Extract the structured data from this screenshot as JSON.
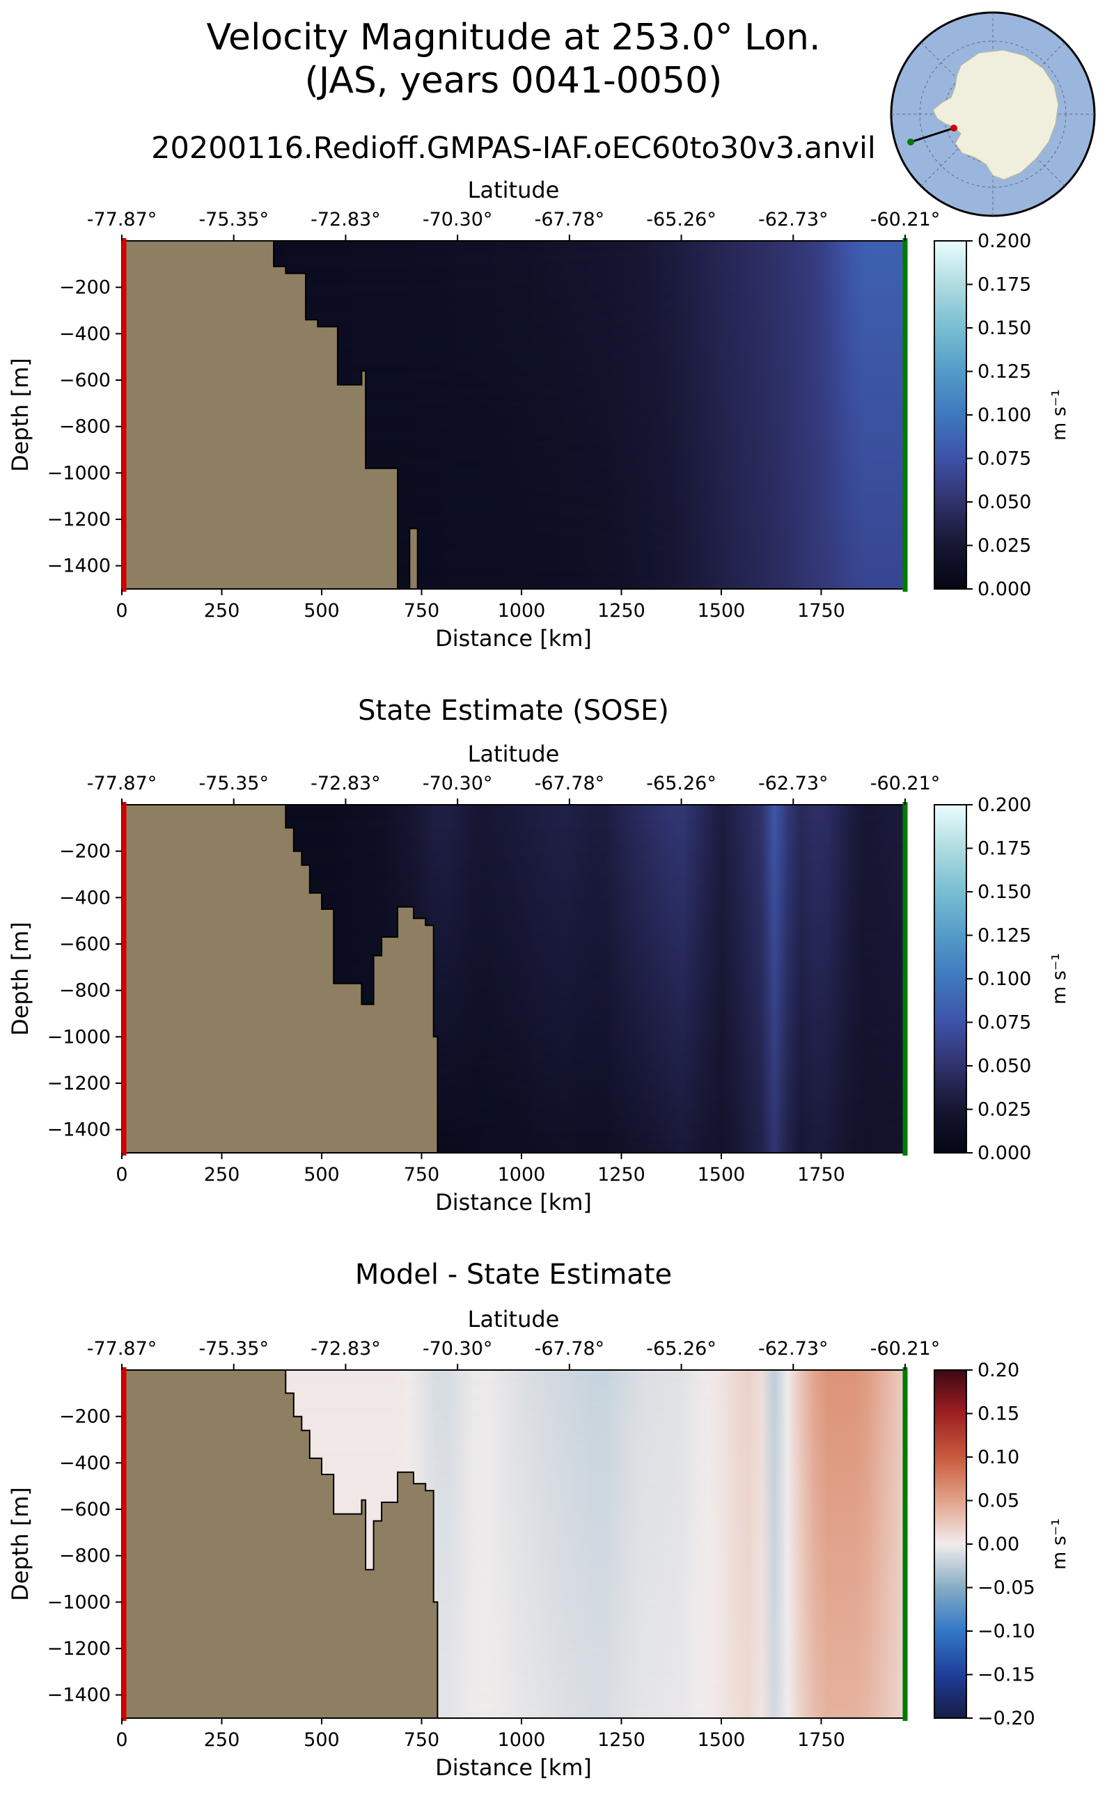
{
  "figure": {
    "title_line1": "Velocity Magnitude at 253.0° Lon.",
    "title_line2": "(JAS, years 0041-0050)",
    "subtitle": "20200116.Redioff.GMPAS-IAF.oEC60to30v3.anvil"
  },
  "colors": {
    "land": "#8e7f62",
    "start_marker": "#d00000",
    "end_marker": "#007a00",
    "ocean_map": "#9bb6dd",
    "continent_map": "#f0eedc"
  },
  "inset_map": {
    "kind": "south-polar-stereographic-map",
    "content": "Antarctica with transect line"
  },
  "chart_data": [
    {
      "type": "heatmap",
      "title": "",
      "xlabel": "Distance [km]",
      "ylabel": "Depth [m]",
      "top_xlabel": "Latitude",
      "xlim": [
        0,
        1960
      ],
      "ylim": [
        -1500,
        0
      ],
      "x_ticks": [
        0,
        250,
        500,
        750,
        1000,
        1250,
        1500,
        1750
      ],
      "y_ticks": [
        -200,
        -400,
        -600,
        -800,
        -1000,
        -1200,
        -1400
      ],
      "top_ticks": [
        "-77.87°",
        "-75.35°",
        "-72.83°",
        "-70.30°",
        "-67.78°",
        "-65.26°",
        "-62.73°",
        "-60.21°"
      ],
      "colorbar": {
        "label": "m s⁻¹",
        "ticks": [
          "0.000",
          "0.025",
          "0.050",
          "0.075",
          "0.100",
          "0.125",
          "0.150",
          "0.175",
          "0.200"
        ],
        "range": [
          0,
          0.2
        ],
        "colormap": "ice"
      },
      "bathymetry_outline": [
        [
          0,
          0
        ],
        [
          380,
          0
        ],
        [
          380,
          -110
        ],
        [
          410,
          -110
        ],
        [
          410,
          -140
        ],
        [
          460,
          -140
        ],
        [
          460,
          -340
        ],
        [
          490,
          -340
        ],
        [
          490,
          -370
        ],
        [
          540,
          -370
        ],
        [
          540,
          -620
        ],
        [
          600,
          -620
        ],
        [
          600,
          -560
        ],
        [
          610,
          -560
        ],
        [
          610,
          -980
        ],
        [
          690,
          -980
        ],
        [
          690,
          -1500
        ],
        [
          0,
          -1500
        ]
      ],
      "seamount": [
        [
          720,
          -1500
        ],
        [
          720,
          -1240
        ],
        [
          740,
          -1240
        ],
        [
          740,
          -1500
        ]
      ],
      "field_profile": {
        "x": [
          0,
          400,
          700,
          1000,
          1200,
          1350,
          1500,
          1650,
          1750,
          1850,
          1960
        ],
        "surface": [
          0.01,
          0.01,
          0.013,
          0.017,
          0.022,
          0.028,
          0.04,
          0.05,
          0.06,
          0.085,
          0.085
        ],
        "deep": [
          0.01,
          0.01,
          0.009,
          0.012,
          0.015,
          0.022,
          0.034,
          0.045,
          0.055,
          0.065,
          0.065
        ]
      }
    },
    {
      "type": "heatmap",
      "title": "State Estimate (SOSE)",
      "xlabel": "Distance [km]",
      "ylabel": "Depth [m]",
      "top_xlabel": "Latitude",
      "xlim": [
        0,
        1960
      ],
      "ylim": [
        -1500,
        0
      ],
      "x_ticks": [
        0,
        250,
        500,
        750,
        1000,
        1250,
        1500,
        1750
      ],
      "y_ticks": [
        -200,
        -400,
        -600,
        -800,
        -1000,
        -1200,
        -1400
      ],
      "top_ticks": [
        "-77.87°",
        "-75.35°",
        "-72.83°",
        "-70.30°",
        "-67.78°",
        "-65.26°",
        "-62.73°",
        "-60.21°"
      ],
      "colorbar": {
        "label": "m s⁻¹",
        "ticks": [
          "0.000",
          "0.025",
          "0.050",
          "0.075",
          "0.100",
          "0.125",
          "0.150",
          "0.175",
          "0.200"
        ],
        "range": [
          0,
          0.2
        ],
        "colormap": "ice"
      },
      "bathymetry_outline": [
        [
          0,
          0
        ],
        [
          410,
          0
        ],
        [
          410,
          -100
        ],
        [
          430,
          -100
        ],
        [
          430,
          -200
        ],
        [
          450,
          -200
        ],
        [
          450,
          -260
        ],
        [
          470,
          -260
        ],
        [
          470,
          -380
        ],
        [
          500,
          -380
        ],
        [
          500,
          -450
        ],
        [
          530,
          -450
        ],
        [
          530,
          -770
        ],
        [
          600,
          -770
        ],
        [
          600,
          -860
        ],
        [
          630,
          -860
        ],
        [
          630,
          -650
        ],
        [
          650,
          -650
        ],
        [
          650,
          -570
        ],
        [
          690,
          -570
        ],
        [
          690,
          -440
        ],
        [
          730,
          -440
        ],
        [
          730,
          -490
        ],
        [
          760,
          -490
        ],
        [
          760,
          -520
        ],
        [
          780,
          -520
        ],
        [
          780,
          -1000
        ],
        [
          790,
          -1000
        ],
        [
          790,
          -1500
        ],
        [
          0,
          -1500
        ]
      ],
      "field_profile": {
        "x": [
          0,
          550,
          650,
          800,
          900,
          1000,
          1100,
          1200,
          1300,
          1400,
          1500,
          1600,
          1640,
          1680,
          1750,
          1850,
          1960
        ],
        "surface": [
          0.01,
          0.01,
          0.015,
          0.035,
          0.025,
          0.03,
          0.035,
          0.03,
          0.045,
          0.055,
          0.03,
          0.05,
          0.085,
          0.04,
          0.05,
          0.025,
          0.03
        ],
        "deep": [
          0.01,
          0.01,
          0.01,
          0.008,
          0.01,
          0.012,
          0.015,
          0.014,
          0.02,
          0.028,
          0.02,
          0.035,
          0.055,
          0.025,
          0.03,
          0.018,
          0.02
        ]
      }
    },
    {
      "type": "heatmap",
      "title": "Model - State Estimate",
      "xlabel": "Distance [km]",
      "ylabel": "Depth [m]",
      "top_xlabel": "Latitude",
      "xlim": [
        0,
        1960
      ],
      "ylim": [
        -1500,
        0
      ],
      "x_ticks": [
        0,
        250,
        500,
        750,
        1000,
        1250,
        1500,
        1750
      ],
      "y_ticks": [
        -200,
        -400,
        -600,
        -800,
        -1000,
        -1200,
        -1400
      ],
      "top_ticks": [
        "-77.87°",
        "-75.35°",
        "-72.83°",
        "-70.30°",
        "-67.78°",
        "-65.26°",
        "-62.73°",
        "-60.21°"
      ],
      "colorbar": {
        "label": "m s⁻¹",
        "ticks": [
          "−0.20",
          "−0.15",
          "−0.10",
          "−0.05",
          "0.00",
          "0.05",
          "0.10",
          "0.15",
          "0.20"
        ],
        "range": [
          -0.2,
          0.2
        ],
        "colormap": "balance"
      },
      "bathymetry_outline": [
        [
          0,
          0
        ],
        [
          410,
          0
        ],
        [
          410,
          -100
        ],
        [
          430,
          -100
        ],
        [
          430,
          -200
        ],
        [
          450,
          -200
        ],
        [
          450,
          -260
        ],
        [
          470,
          -260
        ],
        [
          470,
          -380
        ],
        [
          500,
          -380
        ],
        [
          500,
          -450
        ],
        [
          530,
          -450
        ],
        [
          530,
          -620
        ],
        [
          600,
          -620
        ],
        [
          600,
          -560
        ],
        [
          610,
          -560
        ],
        [
          610,
          -860
        ],
        [
          630,
          -860
        ],
        [
          630,
          -650
        ],
        [
          650,
          -650
        ],
        [
          650,
          -570
        ],
        [
          690,
          -570
        ],
        [
          690,
          -440
        ],
        [
          730,
          -440
        ],
        [
          730,
          -490
        ],
        [
          760,
          -490
        ],
        [
          760,
          -520
        ],
        [
          780,
          -520
        ],
        [
          780,
          -1000
        ],
        [
          790,
          -1000
        ],
        [
          790,
          -1500
        ],
        [
          0,
          -1500
        ]
      ],
      "field_profile": {
        "x": [
          0,
          550,
          700,
          800,
          900,
          1000,
          1100,
          1200,
          1300,
          1400,
          1500,
          1560,
          1600,
          1640,
          1680,
          1750,
          1850,
          1960
        ],
        "surface": [
          0.003,
          0.003,
          0.003,
          -0.015,
          0.0,
          -0.01,
          -0.015,
          -0.02,
          -0.01,
          -0.008,
          0.005,
          0.02,
          0.01,
          -0.03,
          0.015,
          0.06,
          0.06,
          0.02
        ],
        "deep": [
          0.003,
          0.003,
          0.003,
          -0.008,
          0.0,
          -0.005,
          -0.01,
          -0.012,
          -0.006,
          -0.004,
          0.004,
          0.015,
          0.006,
          -0.02,
          0.01,
          0.04,
          0.04,
          0.015
        ]
      }
    }
  ]
}
